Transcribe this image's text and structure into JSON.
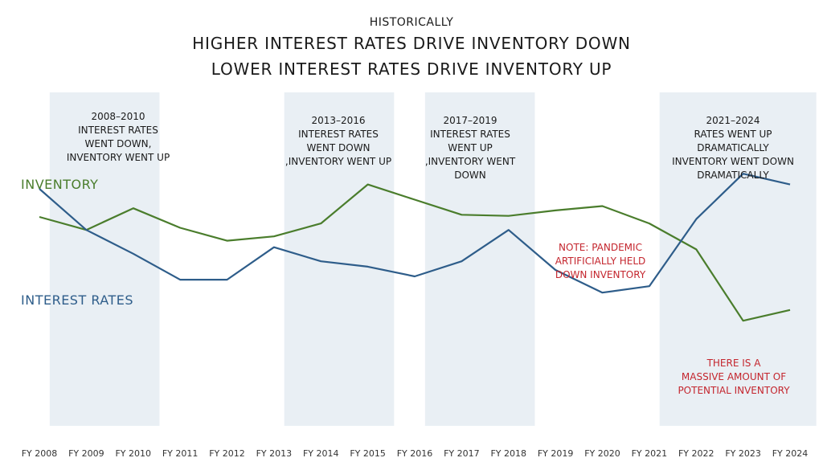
{
  "titles": {
    "pre": "HISTORICALLY",
    "line1": "HIGHER INTEREST RATES DRIVE INVENTORY DOWN",
    "line2": "LOWER INTEREST RATES DRIVE INVENTORY UP"
  },
  "colors": {
    "inventory": "#4a7d2c",
    "interest": "#2e5d8a",
    "shade": "#e9eff4",
    "note": "#c4262e"
  },
  "chart_data": {
    "type": "line",
    "x": [
      "FY 2008",
      "FY 2009",
      "FY 2010",
      "FY 2011",
      "FY 2012",
      "FY 2013",
      "FY 2014",
      "FY 2015",
      "FY 2016",
      "FY 2017",
      "FY 2018",
      "FY 2019",
      "FY 2020",
      "FY 2021",
      "FY 2022",
      "FY 2023",
      "FY 2024"
    ],
    "series": [
      {
        "name": "INVENTORY",
        "values": [
          78,
          72,
          82,
          73,
          67,
          69,
          75,
          93,
          86,
          79,
          78.5,
          81,
          83,
          75,
          63,
          30,
          35
        ]
      },
      {
        "name": "INTEREST RATES",
        "values": [
          91,
          72,
          61,
          49,
          49,
          64,
          57.5,
          55,
          50.5,
          57.5,
          72,
          53.5,
          43,
          46,
          77,
          98,
          93
        ]
      }
    ],
    "ylim": [
      0,
      130
    ],
    "grid": false,
    "shaded_periods": [
      {
        "from": "FY 2008",
        "to": "FY 2010"
      },
      {
        "from": "FY 2013",
        "to": "FY 2015"
      },
      {
        "from": "FY 2016",
        "to": "FY 2018"
      },
      {
        "from": "FY 2021",
        "to": "FY 2024"
      }
    ],
    "annotations": [
      {
        "lines": [
          "2008–2010",
          "INTEREST RATES",
          "WENT DOWN,",
          "INVENTORY WENT UP"
        ]
      },
      {
        "lines": [
          "2013–2016",
          "INTEREST RATES",
          "WENT DOWN",
          ",INVENTORY WENT UP"
        ]
      },
      {
        "lines": [
          "2017–2019",
          "INTEREST RATES",
          "WENT UP",
          ",INVENTORY WENT",
          "DOWN"
        ]
      },
      {
        "lines": [
          "2021–2024",
          "RATES WENT UP",
          "DRAMATICALLY",
          "INVENTORY WENT DOWN",
          "DRAMATICALLY"
        ]
      }
    ],
    "notes": [
      {
        "lines": [
          "NOTE: PANDEMIC",
          "ARTIFICIALLY HELD",
          "DOWN INVENTORY"
        ]
      },
      {
        "lines": [
          "THERE IS A",
          "MASSIVE AMOUNT OF",
          "POTENTIAL INVENTORY"
        ]
      }
    ]
  }
}
